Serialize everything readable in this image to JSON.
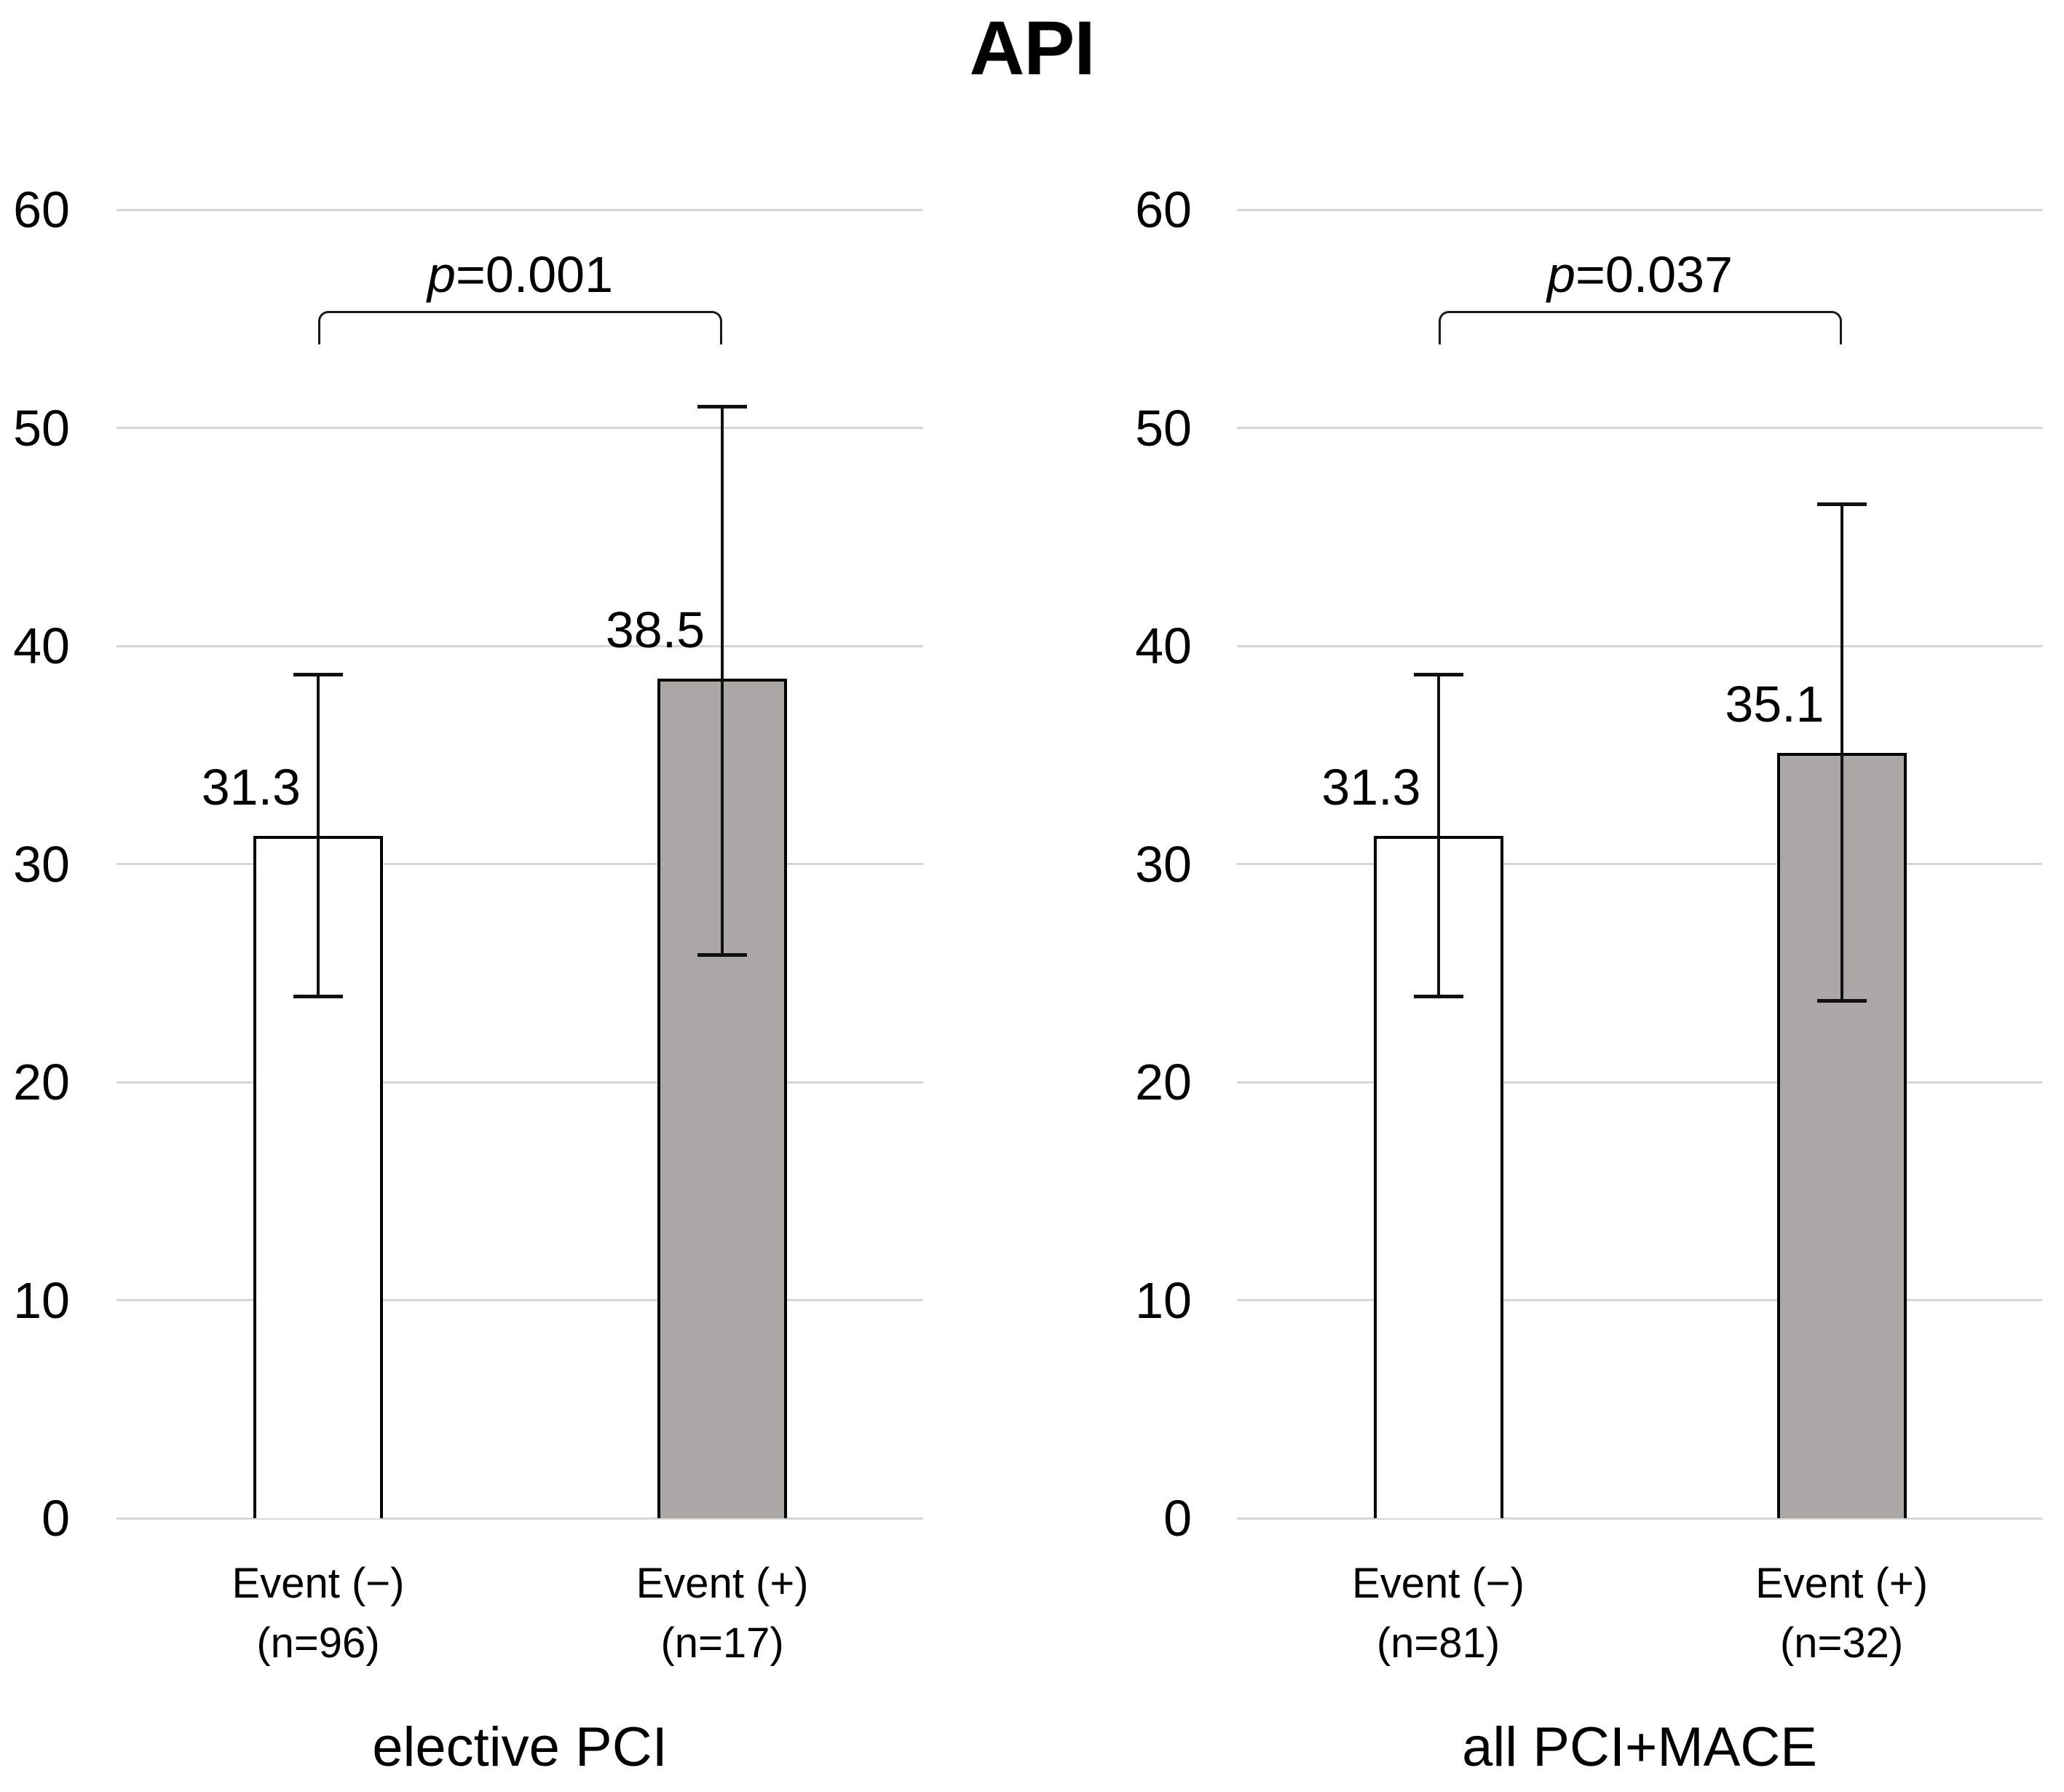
{
  "title": "API",
  "colors": {
    "background": "#ffffff",
    "gridline": "#d6d6d6",
    "bar_border": "#000000",
    "bar_white_fill": "#ffffff",
    "bar_gray_fill": "#aba7a6",
    "text": "#000000"
  },
  "chart_data": {
    "type": "bar",
    "title": "API",
    "ylabel": "",
    "xlabel": "",
    "ylim": [
      0,
      60
    ],
    "yticks": [
      0,
      10,
      20,
      30,
      40,
      50,
      60
    ],
    "grid": true,
    "legend_position": "none",
    "panels": [
      {
        "title": "elective PCI",
        "p_label": "p=0.001",
        "bars": [
          {
            "category_line1": "Event (−)",
            "category_line2": "(n=96)",
            "value": 31.3,
            "error_high": 38.7,
            "error_low": 23.9,
            "fill": "white"
          },
          {
            "category_line1": "Event (+)",
            "category_line2": "(n=17)",
            "value": 38.5,
            "error_high": 51.0,
            "error_low": 25.8,
            "fill": "gray"
          }
        ]
      },
      {
        "title": "all PCI+MACE",
        "p_label": "p=0.037",
        "bars": [
          {
            "category_line1": "Event (−)",
            "category_line2": "(n=81)",
            "value": 31.3,
            "error_high": 38.7,
            "error_low": 23.9,
            "fill": "white"
          },
          {
            "category_line1": "Event (+)",
            "category_line2": "(n=32)",
            "value": 35.1,
            "error_high": 46.5,
            "error_low": 23.7,
            "fill": "gray"
          }
        ]
      }
    ]
  }
}
